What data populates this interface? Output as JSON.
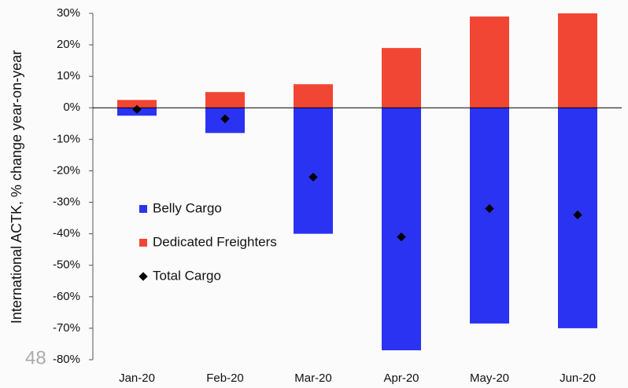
{
  "chart_data": {
    "type": "bar",
    "stacked": true,
    "y_label": "International ACTK, % change year-on-year",
    "categories": [
      "Jan-20",
      "Feb-20",
      "Mar-20",
      "Apr-20",
      "May-20",
      "Jun-20"
    ],
    "series": [
      {
        "name": "Belly Cargo",
        "type": "bar",
        "color": "#2b33f2",
        "values": [
          -2.5,
          -8,
          -40,
          -77,
          -68.5,
          -70
        ]
      },
      {
        "name": "Dedicated Freighters",
        "type": "bar",
        "color": "#f24634",
        "values": [
          2.5,
          5,
          7.5,
          19,
          29,
          30
        ]
      },
      {
        "name": "Total Cargo",
        "type": "scatter",
        "color": "#000000",
        "values": [
          -0.5,
          -3.5,
          -22,
          -41,
          -32,
          -34
        ]
      }
    ],
    "ylim": [
      -80,
      30
    ],
    "yticks": [
      {
        "value": 30,
        "label": "30%"
      },
      {
        "value": 20,
        "label": "20%"
      },
      {
        "value": 10,
        "label": "10%"
      },
      {
        "value": 0,
        "label": "0%"
      },
      {
        "value": -10,
        "label": "-10%"
      },
      {
        "value": -20,
        "label": "-20%"
      },
      {
        "value": -30,
        "label": "-30%"
      },
      {
        "value": -40,
        "label": "-40%"
      },
      {
        "value": -50,
        "label": "-50%"
      },
      {
        "value": -60,
        "label": "-60%"
      },
      {
        "value": -70,
        "label": "-70%"
      },
      {
        "value": -80,
        "label": "-80%"
      }
    ],
    "legend": "left",
    "page_number": "48"
  }
}
